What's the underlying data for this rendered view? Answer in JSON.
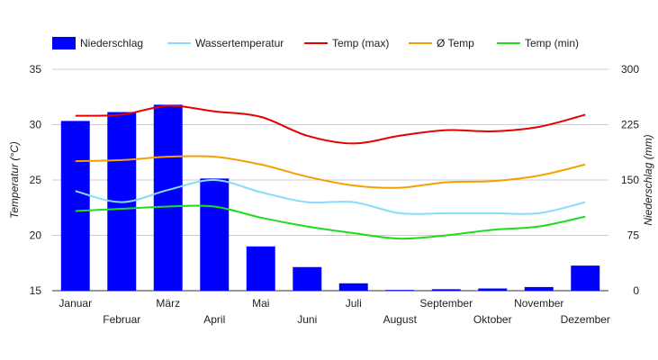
{
  "chart_data": {
    "type": "bar",
    "categories": [
      "Januar",
      "Februar",
      "März",
      "April",
      "Mai",
      "Juni",
      "Juli",
      "August",
      "September",
      "Oktober",
      "November",
      "Dezember"
    ],
    "series": [
      {
        "name": "Niederschlag",
        "kind": "bar",
        "axis": "right",
        "color": "#0000ff",
        "values": [
          230,
          242,
          252,
          152,
          60,
          32,
          10,
          1,
          2,
          3,
          5,
          34
        ]
      },
      {
        "name": "Wassertemperatur",
        "kind": "line",
        "axis": "left",
        "color": "#87dcfa",
        "values": [
          24.0,
          23.0,
          24.1,
          25.0,
          23.9,
          23.0,
          23.0,
          22.0,
          22.0,
          22.0,
          22.0,
          23.0
        ]
      },
      {
        "name": "Temp (max)",
        "kind": "line",
        "axis": "left",
        "color": "#e60000",
        "values": [
          30.8,
          30.9,
          31.7,
          31.2,
          30.7,
          29.0,
          28.3,
          29.0,
          29.5,
          29.4,
          29.8,
          30.9
        ]
      },
      {
        "name": "Ø Temp",
        "kind": "line",
        "axis": "left",
        "color": "#f5a000",
        "values": [
          26.7,
          26.8,
          27.1,
          27.1,
          26.4,
          25.3,
          24.5,
          24.3,
          24.8,
          24.9,
          25.4,
          26.4
        ]
      },
      {
        "name": "Temp (min)",
        "kind": "line",
        "axis": "left",
        "color": "#1fdc1f",
        "values": [
          22.2,
          22.4,
          22.6,
          22.6,
          21.6,
          20.8,
          20.2,
          19.7,
          20.0,
          20.5,
          20.8,
          21.7
        ]
      }
    ],
    "ylabel": "Temperatur (°C)",
    "ylabel_right": "Niederschlag (mm)",
    "ylim": [
      15,
      35
    ],
    "yticks": [
      15,
      20,
      25,
      30,
      35
    ],
    "ylim_right": [
      0,
      300
    ],
    "yticks_right": [
      0,
      75,
      150,
      225,
      300
    ],
    "grid": true,
    "legend": "top-left"
  }
}
